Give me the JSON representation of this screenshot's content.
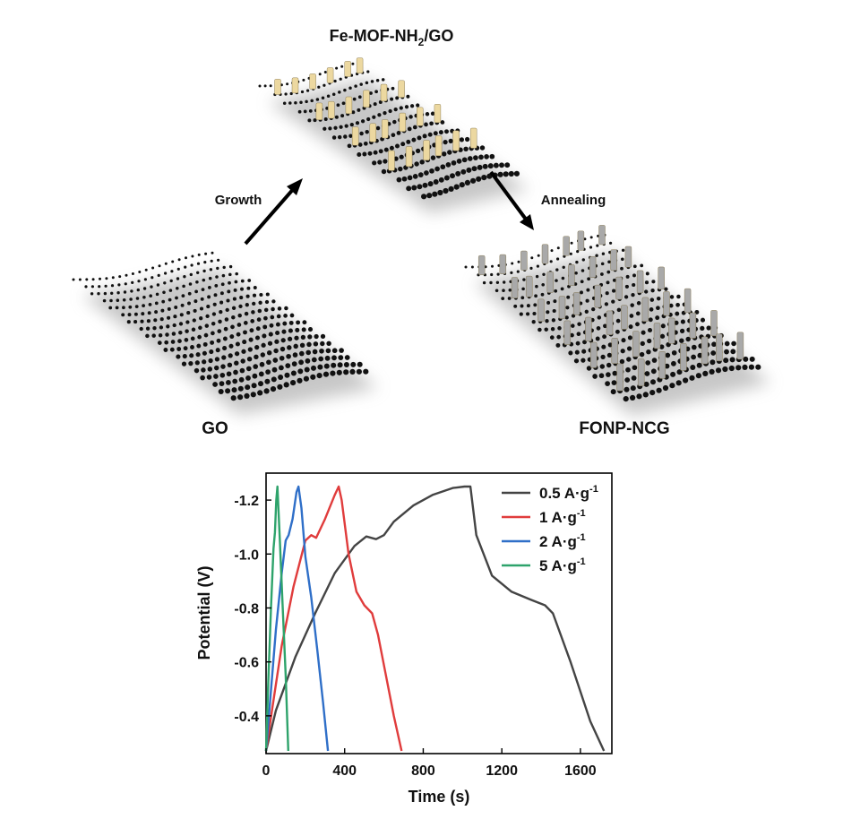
{
  "schematic": {
    "top_title_main": "Fe-MOF-NH",
    "top_title_sub": "2",
    "top_title_tail": "/GO",
    "left_label": "GO",
    "right_label": "FONP-NCG",
    "arrow_growth": "Growth",
    "arrow_annealing": "Annealing",
    "colors": {
      "atom": "#111111",
      "mof_rod": "#ecd8a0",
      "nanoparticle_rod": "#a9a9a9",
      "arrow": "#000000"
    }
  },
  "chart_data": {
    "type": "line",
    "xlabel": "Time (s)",
    "ylabel": "Potential (V)",
    "xlim": [
      0,
      1760
    ],
    "ylim": [
      -0.26,
      -1.3
    ],
    "y_axis_inverted": true,
    "xticks": [
      0,
      400,
      800,
      1200,
      1600
    ],
    "yticks": [
      -0.4,
      -0.6,
      -0.8,
      -1.0,
      -1.2
    ],
    "xtick_labels": [
      "0",
      "400",
      "800",
      "1200",
      "1600"
    ],
    "ytick_labels": [
      "-0.4",
      "-0.6",
      "-0.8",
      "-1.0",
      "-1.2"
    ],
    "legend_position": "top-right",
    "series": [
      {
        "name": "0.5 A·g-1",
        "legend_main": "0.5 A·g",
        "legend_sup": "-1",
        "color": "#444444",
        "x": [
          0,
          50,
          150,
          250,
          350,
          450,
          510,
          560,
          600,
          650,
          750,
          850,
          950,
          1010,
          1040,
          1070,
          1150,
          1250,
          1350,
          1420,
          1460,
          1550,
          1650,
          1720
        ],
        "y": [
          -0.27,
          -0.42,
          -0.62,
          -0.78,
          -0.93,
          -1.03,
          -1.065,
          -1.055,
          -1.07,
          -1.12,
          -1.18,
          -1.22,
          -1.245,
          -1.25,
          -1.25,
          -1.07,
          -0.92,
          -0.86,
          -0.83,
          -0.81,
          -0.78,
          -0.6,
          -0.38,
          -0.27
        ]
      },
      {
        "name": "1 A·g-1",
        "legend_main": "1 A·g",
        "legend_sup": "-1",
        "color": "#e03c3c",
        "x": [
          0,
          30,
          80,
          140,
          200,
          230,
          255,
          300,
          350,
          370,
          385,
          420,
          460,
          500,
          540,
          570,
          610,
          650,
          690
        ],
        "y": [
          -0.27,
          -0.42,
          -0.66,
          -0.88,
          -1.05,
          -1.07,
          -1.06,
          -1.13,
          -1.22,
          -1.25,
          -1.2,
          -1.0,
          -0.86,
          -0.81,
          -0.78,
          -0.7,
          -0.55,
          -0.4,
          -0.27
        ]
      },
      {
        "name": "2 A·g-1",
        "legend_main": "2 A·g",
        "legend_sup": "-1",
        "color": "#2f6fc8",
        "x": [
          0,
          20,
          50,
          80,
          100,
          115,
          135,
          155,
          165,
          180,
          200,
          230,
          260,
          290,
          315
        ],
        "y": [
          -0.27,
          -0.45,
          -0.72,
          -0.93,
          -1.05,
          -1.07,
          -1.13,
          -1.23,
          -1.25,
          -1.17,
          -0.99,
          -0.84,
          -0.65,
          -0.45,
          -0.27
        ]
      },
      {
        "name": "5 A·g-1",
        "legend_main": "5 A·g",
        "legend_sup": "-1",
        "color": "#2ea36b",
        "x": [
          0,
          10,
          25,
          38,
          45,
          52,
          58,
          70,
          85,
          100,
          113
        ],
        "y": [
          -0.27,
          -0.5,
          -0.8,
          -1.02,
          -1.08,
          -1.2,
          -1.25,
          -1.05,
          -0.8,
          -0.55,
          -0.27
        ]
      }
    ]
  }
}
